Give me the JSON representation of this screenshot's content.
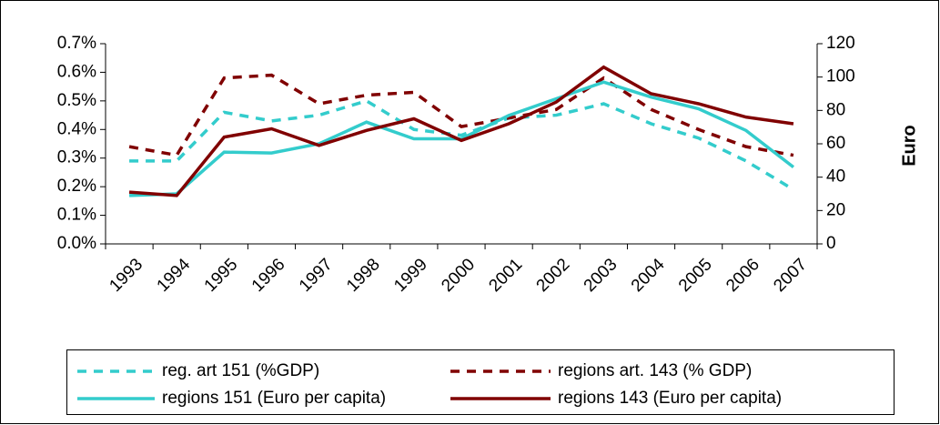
{
  "chart_data": {
    "type": "line",
    "y2label": "Euro",
    "categories": [
      "1993",
      "1994",
      "1995",
      "1996",
      "1997",
      "1998",
      "1999",
      "2000",
      "2001",
      "2002",
      "2003",
      "2004",
      "2005",
      "2006",
      "2007"
    ],
    "ylim": [
      0,
      0.7
    ],
    "yticks": [
      {
        "value": 0,
        "label": "0.0%"
      },
      {
        "value": 0.1,
        "label": "0.1%"
      },
      {
        "value": 0.2,
        "label": "0.2%"
      },
      {
        "value": 0.3,
        "label": "0.3%"
      },
      {
        "value": 0.4,
        "label": "0.4%"
      },
      {
        "value": 0.5,
        "label": "0.5%"
      },
      {
        "value": 0.6,
        "label": "0.6%"
      },
      {
        "value": 0.7,
        "label": "0.7%"
      }
    ],
    "y2lim": [
      0,
      120
    ],
    "y2ticks": [
      0,
      20,
      40,
      60,
      80,
      100,
      120
    ],
    "series": [
      {
        "name": "reg. art 151 (%GDP)",
        "color": "#33cccc",
        "dashed": true,
        "values": [
          0.29,
          0.29,
          0.46,
          0.43,
          0.45,
          0.5,
          0.4,
          0.38,
          0.44,
          0.45,
          0.49,
          0.42,
          0.37,
          0.29,
          0.19
        ]
      },
      {
        "name": "regions art. 143 (% GDP)",
        "color": "#800000",
        "dashed": true,
        "values": [
          0.34,
          0.31,
          0.58,
          0.59,
          0.49,
          0.52,
          0.53,
          0.41,
          0.44,
          0.47,
          0.58,
          0.47,
          0.4,
          0.34,
          0.31
        ]
      },
      {
        "name": "regions 151 (Euro per capita)",
        "color": "#33cccc",
        "dashed": false,
        "axis": "y2",
        "values": [
          29,
          30,
          55,
          54.5,
          60,
          73,
          63,
          63,
          77,
          87,
          97,
          88,
          81,
          68,
          46
        ]
      },
      {
        "name": "regions 143 (Euro per capita)",
        "color": "#800000",
        "dashed": false,
        "axis": "y2",
        "values": [
          31,
          29,
          64,
          69,
          59,
          68,
          75,
          62,
          72,
          85,
          106,
          90,
          84,
          76,
          72
        ]
      }
    ]
  }
}
